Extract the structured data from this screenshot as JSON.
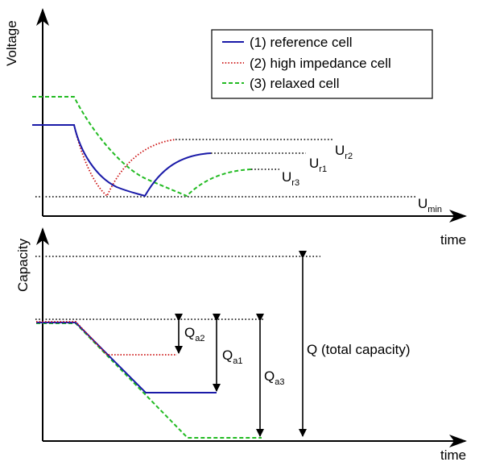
{
  "top_plot": {
    "y_axis_label": "Voltage",
    "x_axis_label": "time",
    "legend": [
      {
        "label": "(1) reference cell",
        "color": "#1a1aa8"
      },
      {
        "label": "(2) high impedance cell",
        "color": "#cc1111"
      },
      {
        "label": "(3) relaxed cell",
        "color": "#22bb22"
      }
    ],
    "levels": {
      "ur2": {
        "main": "U",
        "sub": "r2"
      },
      "ur1": {
        "main": "U",
        "sub": "r1"
      },
      "ur3": {
        "main": "U",
        "sub": "r3"
      },
      "umin": {
        "main": "U",
        "sub": "min"
      }
    }
  },
  "bottom_plot": {
    "y_axis_label": "Capacity",
    "x_axis_label": "time",
    "markers": {
      "qa2": {
        "main": "Q",
        "sub": "a2"
      },
      "qa1": {
        "main": "Q",
        "sub": "a1"
      },
      "qa3": {
        "main": "Q",
        "sub": "a3"
      },
      "total": "Q (total capacity)"
    }
  }
}
